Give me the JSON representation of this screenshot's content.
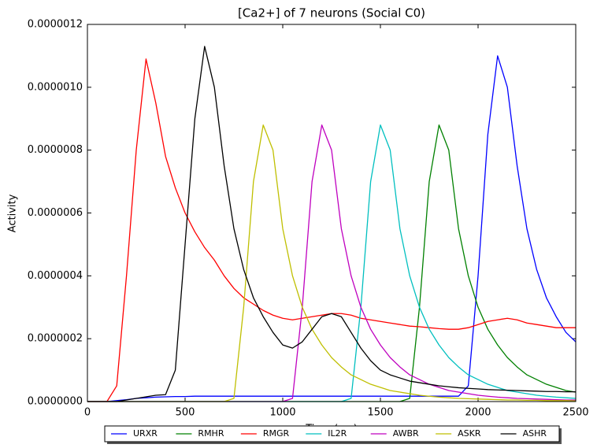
{
  "chart_data": {
    "type": "line",
    "title": "[Ca2+] of 7 neurons (Social C0)",
    "xlabel": "Time (ms)",
    "ylabel": "Activity",
    "x": [
      0,
      50,
      100,
      150,
      200,
      250,
      300,
      350,
      400,
      450,
      500,
      550,
      600,
      650,
      700,
      750,
      800,
      850,
      900,
      950,
      1000,
      1050,
      1100,
      1150,
      1200,
      1250,
      1300,
      1350,
      1400,
      1450,
      1500,
      1550,
      1600,
      1650,
      1700,
      1750,
      1800,
      1850,
      1900,
      1950,
      2000,
      2050,
      2100,
      2150,
      2200,
      2250,
      2300,
      2350,
      2400,
      2450,
      2500
    ],
    "xlim": [
      0,
      2500
    ],
    "xticks": [
      0,
      500,
      1000,
      1500,
      2000,
      2500
    ],
    "ylim": [
      0,
      1.2e-06
    ],
    "yticks": [
      {
        "value": 0,
        "label": "0.0000000"
      },
      {
        "value": 2e-07,
        "label": "0.0000002"
      },
      {
        "value": 4e-07,
        "label": "0.0000004"
      },
      {
        "value": 6e-07,
        "label": "0.0000006"
      },
      {
        "value": 8e-07,
        "label": "0.0000008"
      },
      {
        "value": 1e-06,
        "label": "0.0000010"
      },
      {
        "value": 1.2e-06,
        "label": "0.0000012"
      }
    ],
    "legend": "bottom",
    "series": [
      {
        "name": "URXR",
        "color": "#0000ff",
        "values": [
          0,
          0,
          0,
          3e-09,
          6e-09,
          1e-08,
          1.2e-08,
          1.4e-08,
          1.5e-08,
          1.6e-08,
          1.6e-08,
          1.7e-08,
          1.7e-08,
          1.7e-08,
          1.7e-08,
          1.7e-08,
          1.7e-08,
          1.7e-08,
          1.7e-08,
          1.7e-08,
          1.7e-08,
          1.7e-08,
          1.7e-08,
          1.7e-08,
          1.7e-08,
          1.7e-08,
          1.7e-08,
          1.7e-08,
          1.7e-08,
          1.7e-08,
          1.7e-08,
          1.7e-08,
          1.7e-08,
          1.7e-08,
          1.7e-08,
          1.7e-08,
          1.7e-08,
          1.7e-08,
          1.7e-08,
          5e-08,
          4e-07,
          8.5e-07,
          1.1e-06,
          1e-06,
          7.5e-07,
          5.5e-07,
          4.2e-07,
          3.3e-07,
          2.7e-07,
          2.2e-07,
          1.9e-07
        ]
      },
      {
        "name": "RMHR",
        "color": "#008000",
        "values": [
          0,
          0,
          0,
          0,
          0,
          0,
          0,
          0,
          0,
          0,
          0,
          0,
          0,
          0,
          0,
          0,
          0,
          0,
          0,
          0,
          0,
          0,
          0,
          0,
          0,
          0,
          0,
          0,
          0,
          0,
          0,
          0,
          0,
          1e-08,
          3e-07,
          7e-07,
          8.8e-07,
          8e-07,
          5.5e-07,
          4e-07,
          3e-07,
          2.3e-07,
          1.8e-07,
          1.4e-07,
          1.1e-07,
          8.5e-08,
          7e-08,
          5.5e-08,
          4.5e-08,
          3.5e-08,
          3e-08
        ]
      },
      {
        "name": "RMGR",
        "color": "#ff0000",
        "values": [
          0,
          0,
          0,
          5e-08,
          4e-07,
          8e-07,
          1.09e-06,
          9.5e-07,
          7.8e-07,
          6.8e-07,
          6e-07,
          5.4e-07,
          4.9e-07,
          4.5e-07,
          4e-07,
          3.6e-07,
          3.3e-07,
          3.1e-07,
          2.9e-07,
          2.75e-07,
          2.65e-07,
          2.6e-07,
          2.65e-07,
          2.7e-07,
          2.75e-07,
          2.8e-07,
          2.8e-07,
          2.75e-07,
          2.65e-07,
          2.6e-07,
          2.55e-07,
          2.5e-07,
          2.45e-07,
          2.4e-07,
          2.38e-07,
          2.35e-07,
          2.32e-07,
          2.3e-07,
          2.3e-07,
          2.35e-07,
          2.45e-07,
          2.55e-07,
          2.6e-07,
          2.65e-07,
          2.6e-07,
          2.5e-07,
          2.45e-07,
          2.4e-07,
          2.35e-07,
          2.35e-07,
          2.35e-07
        ]
      },
      {
        "name": "IL2R",
        "color": "#00bfbf",
        "values": [
          0,
          0,
          0,
          0,
          0,
          0,
          0,
          0,
          0,
          0,
          0,
          0,
          0,
          0,
          0,
          0,
          0,
          0,
          0,
          0,
          0,
          0,
          0,
          0,
          0,
          0,
          0,
          1e-08,
          3e-07,
          7e-07,
          8.8e-07,
          8e-07,
          5.5e-07,
          4e-07,
          3e-07,
          2.3e-07,
          1.8e-07,
          1.4e-07,
          1.1e-07,
          8.5e-08,
          7e-08,
          5.5e-08,
          4.5e-08,
          3.5e-08,
          3e-08,
          2.5e-08,
          2e-08,
          1.7e-08,
          1.4e-08,
          1.2e-08,
          1e-08
        ]
      },
      {
        "name": "AWBR",
        "color": "#bf00bf",
        "values": [
          0,
          0,
          0,
          0,
          0,
          0,
          0,
          0,
          0,
          0,
          0,
          0,
          0,
          0,
          0,
          0,
          0,
          0,
          0,
          0,
          0,
          1e-08,
          3e-07,
          7e-07,
          8.8e-07,
          8e-07,
          5.5e-07,
          4e-07,
          3e-07,
          2.3e-07,
          1.8e-07,
          1.4e-07,
          1.1e-07,
          8.5e-08,
          7e-08,
          5.5e-08,
          4.5e-08,
          3.5e-08,
          3e-08,
          2.5e-08,
          2e-08,
          1.7e-08,
          1.4e-08,
          1.2e-08,
          1e-08,
          9e-09,
          8e-09,
          7e-09,
          6e-09,
          5e-09,
          5e-09
        ]
      },
      {
        "name": "ASKR",
        "color": "#bfbf00",
        "values": [
          0,
          0,
          0,
          0,
          0,
          0,
          0,
          0,
          0,
          0,
          0,
          0,
          0,
          0,
          0,
          1e-08,
          3e-07,
          7e-07,
          8.8e-07,
          8e-07,
          5.5e-07,
          4e-07,
          3e-07,
          2.3e-07,
          1.8e-07,
          1.4e-07,
          1.1e-07,
          8.5e-08,
          7e-08,
          5.5e-08,
          4.5e-08,
          3.5e-08,
          3e-08,
          2.5e-08,
          2e-08,
          1.7e-08,
          1.4e-08,
          1.2e-08,
          1e-08,
          9e-09,
          8e-09,
          7e-09,
          6e-09,
          5e-09,
          5e-09,
          4e-09,
          4e-09,
          3e-09,
          3e-09,
          3e-09,
          2e-09
        ]
      },
      {
        "name": "ASHR",
        "color": "#000000",
        "values": [
          0,
          0,
          0,
          0,
          5e-09,
          1e-08,
          1.5e-08,
          2e-08,
          2.2e-08,
          1e-07,
          5e-07,
          9e-07,
          1.13e-06,
          1e-06,
          7.5e-07,
          5.5e-07,
          4.2e-07,
          3.3e-07,
          2.7e-07,
          2.2e-07,
          1.8e-07,
          1.7e-07,
          1.9e-07,
          2.3e-07,
          2.7e-07,
          2.8e-07,
          2.7e-07,
          2.2e-07,
          1.7e-07,
          1.3e-07,
          1e-07,
          8.5e-08,
          7.5e-08,
          6.5e-08,
          6e-08,
          5.5e-08,
          5e-08,
          4.7e-08,
          4.4e-08,
          4.2e-08,
          4e-08,
          3.8e-08,
          3.7e-08,
          3.6e-08,
          3.5e-08,
          3.4e-08,
          3.3e-08,
          3.2e-08,
          3.2e-08,
          3.1e-08,
          3.1e-08
        ]
      }
    ]
  }
}
